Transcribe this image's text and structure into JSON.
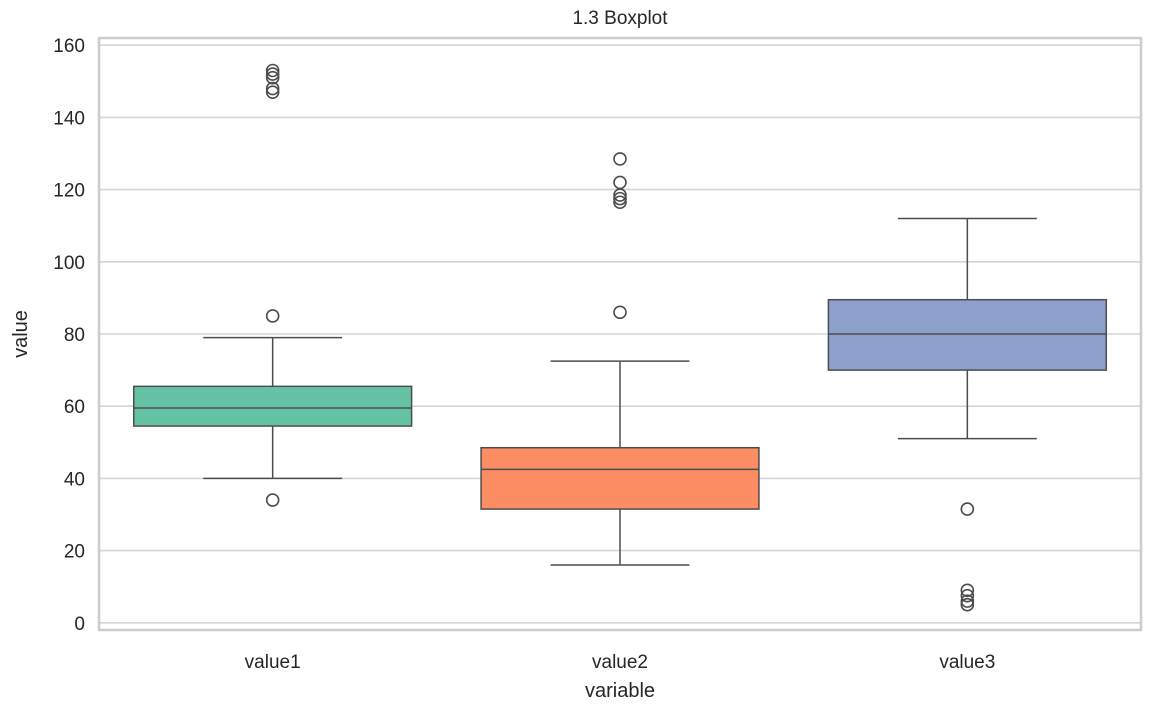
{
  "chart_data": {
    "type": "box",
    "title": "1.3 Boxplot",
    "xlabel": "variable",
    "ylabel": "value",
    "ylim": [
      -2,
      162
    ],
    "yticks": [
      0,
      20,
      40,
      60,
      80,
      100,
      120,
      140,
      160
    ],
    "grid": "horizontal",
    "categories": [
      "value1",
      "value2",
      "value3"
    ],
    "boxes": [
      {
        "name": "value1",
        "color": "#66c2a5",
        "whisker_low": 40,
        "q1": 54.5,
        "median": 59.5,
        "q3": 65.5,
        "whisker_high": 79,
        "outliers": [
          34,
          85,
          147,
          148,
          151,
          152,
          153
        ]
      },
      {
        "name": "value2",
        "color": "#fc8d62",
        "whisker_low": 16,
        "q1": 31.5,
        "median": 42.5,
        "q3": 48.5,
        "whisker_high": 72.5,
        "outliers": [
          86,
          116.5,
          117.5,
          118.5,
          122,
          128.5
        ]
      },
      {
        "name": "value3",
        "color": "#8da0cb",
        "whisker_low": 51,
        "q1": 70,
        "median": 80,
        "q3": 89.5,
        "whisker_high": 112,
        "outliers": [
          5,
          6,
          7.5,
          9,
          31.5
        ]
      }
    ]
  }
}
